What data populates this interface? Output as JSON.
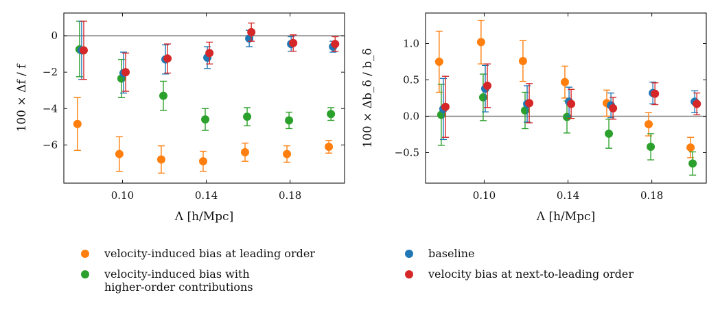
{
  "chart_data": [
    {
      "type": "scatter",
      "subtype": "errorbar",
      "xlabel": "Λ [h/Mpc]",
      "ylabel": "100 × Δf / f",
      "xlim": [
        0.072,
        0.206
      ],
      "ylim": [
        -8.1,
        1.25
      ],
      "xticks": [
        0.1,
        0.14,
        0.18
      ],
      "xtick_labels": [
        "0.10",
        "0.14",
        "0.18"
      ],
      "yticks": [
        0,
        -2,
        -4,
        -6
      ],
      "ytick_labels": [
        "0",
        "−2",
        "−4",
        "−6"
      ],
      "reference_line": 0,
      "x": [
        0.08,
        0.1,
        0.12,
        0.14,
        0.16,
        0.18,
        0.2
      ],
      "series": [
        {
          "name": "velocity-induced bias at leading order",
          "offset": -0.0015,
          "values": [
            -4.85,
            -6.5,
            -6.8,
            -6.9,
            -6.4,
            -6.5,
            -6.1
          ],
          "err_low": [
            1.45,
            0.95,
            0.75,
            0.55,
            0.5,
            0.45,
            0.35
          ],
          "err_high": [
            1.45,
            0.95,
            0.75,
            0.55,
            0.5,
            0.45,
            0.35
          ]
        },
        {
          "name": "velocity-induced bias with higher-order contributions",
          "offset": -0.0005,
          "values": [
            -0.75,
            -2.35,
            -3.3,
            -4.6,
            -4.45,
            -4.65,
            -4.3
          ],
          "err_low": [
            1.5,
            1.05,
            0.8,
            0.6,
            0.5,
            0.45,
            0.35
          ],
          "err_high": [
            1.55,
            1.05,
            0.8,
            0.6,
            0.5,
            0.45,
            0.35
          ]
        },
        {
          "name": "baseline",
          "offset": 0.0005,
          "values": [
            -0.8,
            -2.05,
            -1.3,
            -1.2,
            -0.15,
            -0.45,
            -0.6
          ],
          "err_low": [
            1.6,
            1.1,
            0.8,
            0.6,
            0.45,
            0.4,
            0.3
          ],
          "err_high": [
            1.6,
            1.15,
            0.8,
            0.6,
            0.45,
            0.4,
            0.3
          ]
        },
        {
          "name": "velocity bias at next-to-leading order",
          "offset": 0.0015,
          "values": [
            -0.8,
            -2.0,
            -1.25,
            -0.95,
            0.2,
            -0.4,
            -0.45
          ],
          "err_low": [
            1.6,
            1.05,
            0.8,
            0.6,
            0.5,
            0.45,
            0.4
          ],
          "err_high": [
            1.6,
            1.05,
            0.8,
            0.6,
            0.5,
            0.45,
            0.4
          ]
        }
      ]
    },
    {
      "type": "scatter",
      "subtype": "errorbar",
      "xlabel": "Λ [h/Mpc]",
      "ylabel": "100 × Δb_δ / b_δ",
      "xlim": [
        0.072,
        0.206
      ],
      "ylim": [
        -0.92,
        1.42
      ],
      "xticks": [
        0.1,
        0.14,
        0.18
      ],
      "xtick_labels": [
        "0.10",
        "0.14",
        "0.18"
      ],
      "yticks": [
        1.0,
        0.5,
        0.0,
        -0.5
      ],
      "ytick_labels": [
        "1.0",
        "0.5",
        "0.0",
        "−0.5"
      ],
      "reference_line": 0,
      "x": [
        0.08,
        0.1,
        0.12,
        0.14,
        0.16,
        0.18,
        0.2
      ],
      "series": [
        {
          "name": "velocity-induced bias at leading order",
          "offset": -0.0015,
          "values": [
            0.75,
            1.02,
            0.76,
            0.47,
            0.18,
            -0.11,
            -0.43
          ],
          "err_low": [
            0.42,
            0.3,
            0.28,
            0.22,
            0.18,
            0.16,
            0.14
          ],
          "err_high": [
            0.42,
            0.3,
            0.28,
            0.22,
            0.18,
            0.16,
            0.14
          ]
        },
        {
          "name": "velocity-induced bias with higher-order contributions",
          "offset": -0.0005,
          "values": [
            0.02,
            0.26,
            0.08,
            -0.01,
            -0.24,
            -0.42,
            -0.65
          ],
          "err_low": [
            0.42,
            0.32,
            0.25,
            0.22,
            0.2,
            0.18,
            0.16
          ],
          "err_high": [
            0.42,
            0.32,
            0.25,
            0.22,
            0.2,
            0.18,
            0.16
          ]
        },
        {
          "name": "baseline",
          "offset": 0.0005,
          "values": [
            0.1,
            0.38,
            0.17,
            0.2,
            0.15,
            0.32,
            0.2
          ],
          "err_low": [
            0.42,
            0.32,
            0.25,
            0.2,
            0.17,
            0.15,
            0.15
          ],
          "err_high": [
            0.42,
            0.32,
            0.25,
            0.2,
            0.17,
            0.15,
            0.15
          ]
        },
        {
          "name": "velocity bias at next-to-leading order",
          "offset": 0.0015,
          "values": [
            0.13,
            0.42,
            0.18,
            0.17,
            0.11,
            0.31,
            0.17
          ],
          "err_low": [
            0.42,
            0.3,
            0.27,
            0.2,
            0.15,
            0.15,
            0.15
          ],
          "err_high": [
            0.42,
            0.3,
            0.27,
            0.2,
            0.15,
            0.15,
            0.15
          ]
        }
      ]
    }
  ],
  "legend": {
    "items": [
      {
        "label_lines": [
          "velocity-induced bias at leading order"
        ],
        "color": "#ff7f0e"
      },
      {
        "label_lines": [
          "velocity-induced bias with",
          "higher-order contributions"
        ],
        "color": "#2ca02c"
      },
      {
        "label_lines": [
          "baseline"
        ],
        "color": "#1f77b4"
      },
      {
        "label_lines": [
          "velocity bias at next-to-leading order"
        ],
        "color": "#d62728"
      }
    ]
  },
  "colors": {
    "velocity-induced bias at leading order": "#ff7f0e",
    "velocity-induced bias with higher-order contributions": "#2ca02c",
    "baseline": "#1f77b4",
    "velocity bias at next-to-leading order": "#d62728",
    "reference_line": "#808080"
  }
}
